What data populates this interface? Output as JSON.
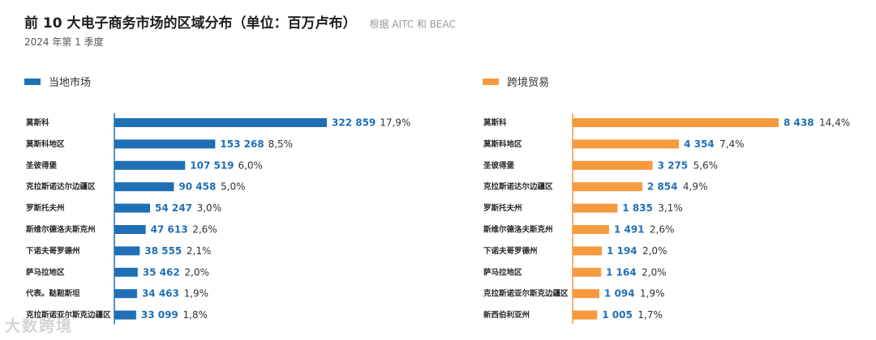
{
  "header": {
    "title": "前 10 大电子商务市场的区域分布（单位：百万卢布）",
    "source": "根据 AITC 和 BEAC",
    "subtitle": "2024 年第 1 季度"
  },
  "watermark": "大数跨境",
  "colors": {
    "local": "#1f6fb5",
    "cross": "#f59a3e",
    "axis": "#1f6fb5",
    "axis_right": "#f59a3e"
  },
  "chart_data": [
    {
      "type": "bar",
      "orientation": "horizontal",
      "legend": "当地市场",
      "categories": [
        "莫斯科",
        "莫斯科地区",
        "圣彼得堡",
        "克拉斯诺达尔边疆区",
        "罗斯托夫州",
        "斯维尔德洛夫斯克州",
        "下诺夫哥罗德州",
        "萨马拉地区",
        "代表。鞑靼斯坦",
        "克拉斯诺亚尔斯克边疆区"
      ],
      "values": [
        322859,
        153268,
        107519,
        90458,
        54247,
        47613,
        38555,
        35462,
        34463,
        33099
      ],
      "value_labels": [
        "322 859",
        "153 268",
        "107 519",
        "90 458",
        "54 247",
        "47 613",
        "38 555",
        "35 462",
        "34 463",
        "33 099"
      ],
      "shares": [
        "17,9%",
        "8,5%",
        "6,0%",
        "5,0%",
        "3,0%",
        "2,6%",
        "2,1%",
        "2,0%",
        "1,9%",
        "1,8%"
      ]
    },
    {
      "type": "bar",
      "orientation": "horizontal",
      "legend": "跨境贸易",
      "categories": [
        "莫斯科",
        "莫斯科地区",
        "圣彼得堡",
        "克拉斯诺达尔边疆区",
        "罗斯托夫州",
        "斯维尔德洛夫斯克州",
        "下诺夫哥罗德州",
        "萨马拉地区",
        "克拉斯诺亚尔斯克边疆区",
        "新西伯利亚州"
      ],
      "values": [
        8438,
        4354,
        3275,
        2854,
        1835,
        1491,
        1194,
        1164,
        1094,
        1005
      ],
      "value_labels": [
        "8 438",
        "4 354",
        "3 275",
        "2 854",
        "1 835",
        "1 491",
        "1 194",
        "1 164",
        "1 094",
        "1 005"
      ],
      "shares": [
        "14,4%",
        "7,4%",
        "5,6%",
        "4,9%",
        "3,1%",
        "2,6%",
        "2,0%",
        "2,0%",
        "1,9%",
        "1,7%"
      ]
    }
  ]
}
